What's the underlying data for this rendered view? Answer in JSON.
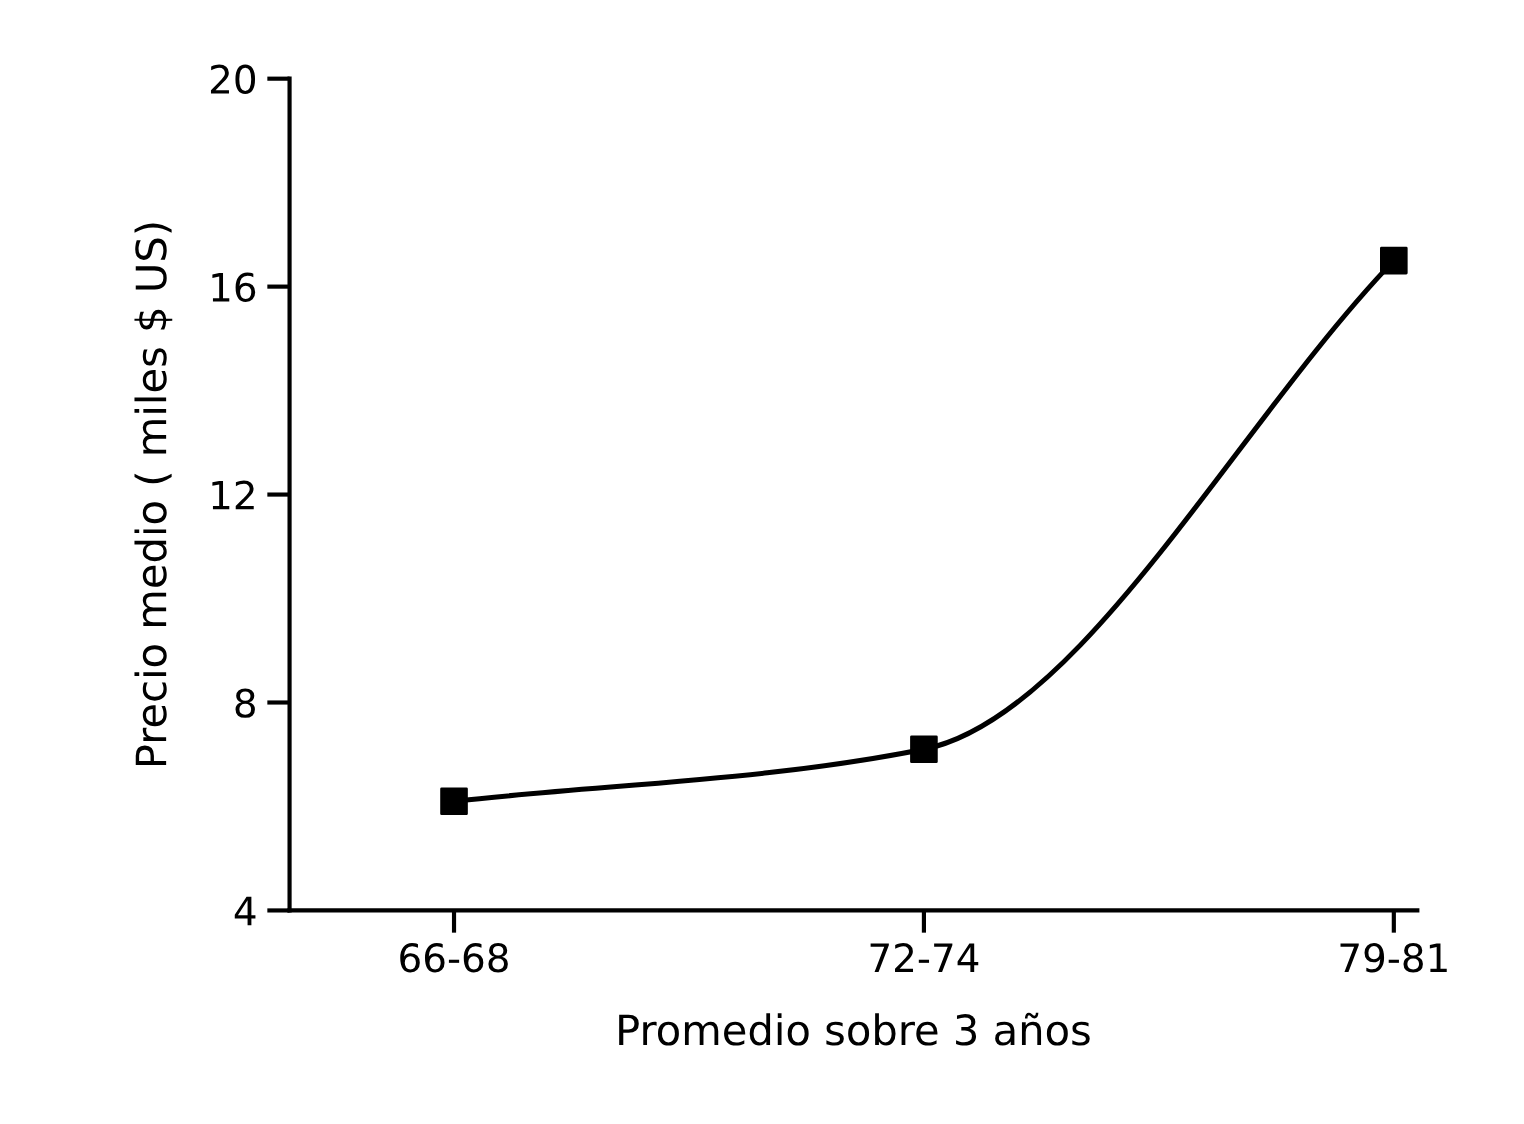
{
  "chart_data": {
    "type": "line",
    "xlabel": "Promedio sobre 3 años",
    "ylabel": "Precio medio ( miles $ US)",
    "categories": [
      "66-68",
      "72-74",
      "79-81"
    ],
    "series": [
      {
        "color": "#000000",
        "values": [
          6.1,
          7.1,
          16.5
        ]
      }
    ],
    "marker": "square",
    "line_style": "solid",
    "ylim": [
      4,
      20
    ],
    "yticks": [
      4,
      8,
      12,
      16,
      20
    ],
    "grid": false,
    "legend": false
  }
}
